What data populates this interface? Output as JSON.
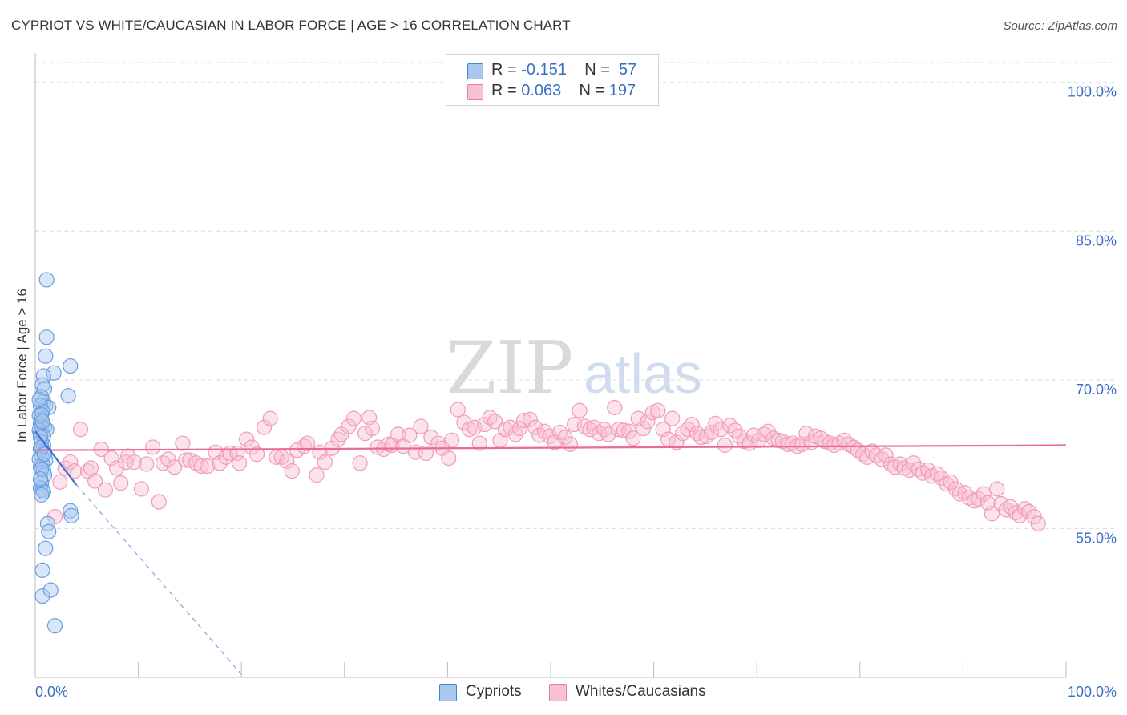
{
  "title": "CYPRIOT VS WHITE/CAUCASIAN IN LABOR FORCE | AGE > 16 CORRELATION CHART",
  "source": "Source: ZipAtlas.com",
  "watermark": {
    "zip": "ZIP",
    "atlas": "atlas"
  },
  "legend": {
    "r_label": "R =",
    "n_label": "N =",
    "rows": [
      {
        "r": "-0.151",
        "n": "57",
        "color": "#a8c8f0",
        "border": "#4a80d0"
      },
      {
        "r": "0.063",
        "n": "197",
        "color": "#f8c0d4",
        "border": "#e87aa0"
      }
    ]
  },
  "bottom_legend": [
    {
      "label": "Cypriots",
      "color": "#a8c8f0",
      "border": "#4a80d0"
    },
    {
      "label": "Whites/Caucasians",
      "color": "#f8c0d4",
      "border": "#e87aa0"
    }
  ],
  "chart_data": {
    "type": "scatter",
    "title": "CYPRIOT VS WHITE/CAUCASIAN IN LABOR FORCE | AGE > 16 CORRELATION CHART",
    "xlabel": "",
    "ylabel": "In Labor Force | Age > 16",
    "xlim": [
      0,
      100
    ],
    "ylim": [
      40,
      102
    ],
    "x_tick_labels": [
      "0.0%",
      "100.0%"
    ],
    "y_ticks": [
      55,
      70,
      85,
      100
    ],
    "y_tick_labels": [
      "55.0%",
      "70.0%",
      "85.0%",
      "100.0%"
    ],
    "grid": "horizontal dashed",
    "legend_placement": "top-center",
    "series": [
      {
        "name": "Cypriots",
        "color": "#6a9ee0",
        "trend": {
          "x": [
            0,
            4.0
          ],
          "y": [
            64.8,
            59.4
          ],
          "dashed_to": [
            20,
            40.3
          ]
        },
        "points": [
          [
            1.1,
            80.1
          ],
          [
            1.1,
            74.3
          ],
          [
            1.0,
            72.4
          ],
          [
            3.4,
            71.4
          ],
          [
            1.8,
            70.7
          ],
          [
            0.8,
            70.4
          ],
          [
            0.7,
            69.5
          ],
          [
            0.9,
            69.1
          ],
          [
            3.2,
            68.4
          ],
          [
            0.6,
            68.3
          ],
          [
            0.8,
            67.8
          ],
          [
            1.0,
            67.4
          ],
          [
            1.3,
            67.2
          ],
          [
            0.5,
            67.4
          ],
          [
            0.7,
            66.8
          ],
          [
            0.4,
            66.4
          ],
          [
            0.6,
            66.0
          ],
          [
            0.5,
            65.6
          ],
          [
            0.6,
            65.3
          ],
          [
            0.9,
            65.2
          ],
          [
            1.1,
            65.0
          ],
          [
            0.4,
            64.9
          ],
          [
            0.5,
            64.6
          ],
          [
            0.8,
            64.3
          ],
          [
            0.6,
            63.7
          ],
          [
            0.8,
            63.4
          ],
          [
            0.5,
            63.0
          ],
          [
            0.9,
            62.7
          ],
          [
            0.6,
            62.3
          ],
          [
            1.0,
            61.9
          ],
          [
            0.7,
            61.5
          ],
          [
            0.5,
            61.2
          ],
          [
            0.8,
            60.9
          ],
          [
            0.9,
            60.4
          ],
          [
            0.6,
            59.6
          ],
          [
            0.5,
            59.1
          ],
          [
            0.7,
            58.9
          ],
          [
            0.8,
            58.7
          ],
          [
            0.6,
            58.4
          ],
          [
            3.4,
            56.8
          ],
          [
            3.5,
            56.3
          ],
          [
            1.2,
            55.5
          ],
          [
            1.3,
            54.7
          ],
          [
            1.0,
            53.0
          ],
          [
            0.7,
            50.8
          ],
          [
            0.7,
            48.2
          ],
          [
            1.5,
            48.8
          ],
          [
            1.9,
            45.2
          ],
          [
            0.4,
            68.0
          ],
          [
            0.6,
            66.5
          ],
          [
            0.7,
            65.8
          ],
          [
            0.5,
            64.2
          ],
          [
            0.6,
            63.2
          ],
          [
            0.4,
            62.0
          ],
          [
            0.6,
            61.0
          ],
          [
            0.5,
            60.0
          ],
          [
            0.9,
            62.5
          ]
        ]
      },
      {
        "name": "Whites/Caucasians",
        "color": "#f19abb",
        "trend": {
          "x": [
            0,
            100
          ],
          "y": [
            62.9,
            63.4
          ]
        },
        "points": [
          [
            1.9,
            56.2
          ],
          [
            2.4,
            59.7
          ],
          [
            2.9,
            61.1
          ],
          [
            3.4,
            61.7
          ],
          [
            3.8,
            60.8
          ],
          [
            4.4,
            65.0
          ],
          [
            5.1,
            60.8
          ],
          [
            5.4,
            61.1
          ],
          [
            5.8,
            59.8
          ],
          [
            6.4,
            63.0
          ],
          [
            6.8,
            58.9
          ],
          [
            7.4,
            62.1
          ],
          [
            7.9,
            61.1
          ],
          [
            8.3,
            59.6
          ],
          [
            8.8,
            61.7
          ],
          [
            9.0,
            62.3
          ],
          [
            9.6,
            61.7
          ],
          [
            10.3,
            59.0
          ],
          [
            10.8,
            61.5
          ],
          [
            11.4,
            63.2
          ],
          [
            12.0,
            57.7
          ],
          [
            12.4,
            61.6
          ],
          [
            12.9,
            62.0
          ],
          [
            13.5,
            61.2
          ],
          [
            14.3,
            63.6
          ],
          [
            14.6,
            61.9
          ],
          [
            15.0,
            61.9
          ],
          [
            15.6,
            61.6
          ],
          [
            16.1,
            61.3
          ],
          [
            16.7,
            61.3
          ],
          [
            17.5,
            62.7
          ],
          [
            17.9,
            61.6
          ],
          [
            18.5,
            62.2
          ],
          [
            18.9,
            62.6
          ],
          [
            19.6,
            62.6
          ],
          [
            19.8,
            61.6
          ],
          [
            20.5,
            64.0
          ],
          [
            21.0,
            63.2
          ],
          [
            21.5,
            62.5
          ],
          [
            22.2,
            65.2
          ],
          [
            22.8,
            66.1
          ],
          [
            23.4,
            62.2
          ],
          [
            23.9,
            62.2
          ],
          [
            24.4,
            61.8
          ],
          [
            24.9,
            60.8
          ],
          [
            25.4,
            62.9
          ],
          [
            26.1,
            63.3
          ],
          [
            26.4,
            63.6
          ],
          [
            27.3,
            60.4
          ],
          [
            27.6,
            62.7
          ],
          [
            28.1,
            61.7
          ],
          [
            28.8,
            63.1
          ],
          [
            29.4,
            64.0
          ],
          [
            29.7,
            64.5
          ],
          [
            30.4,
            65.3
          ],
          [
            30.9,
            66.1
          ],
          [
            31.5,
            61.6
          ],
          [
            32.0,
            64.6
          ],
          [
            32.4,
            66.2
          ],
          [
            32.7,
            65.1
          ],
          [
            33.2,
            63.2
          ],
          [
            33.8,
            63.0
          ],
          [
            34.3,
            63.5
          ],
          [
            34.6,
            63.4
          ],
          [
            35.2,
            64.5
          ],
          [
            35.7,
            63.3
          ],
          [
            36.3,
            64.4
          ],
          [
            36.9,
            62.7
          ],
          [
            37.4,
            65.3
          ],
          [
            37.9,
            62.6
          ],
          [
            38.4,
            64.2
          ],
          [
            39.1,
            63.6
          ],
          [
            39.5,
            63.1
          ],
          [
            40.1,
            62.1
          ],
          [
            40.4,
            63.9
          ],
          [
            41.0,
            67.0
          ],
          [
            41.6,
            65.7
          ],
          [
            42.1,
            65.0
          ],
          [
            42.6,
            65.2
          ],
          [
            43.1,
            63.6
          ],
          [
            43.6,
            65.5
          ],
          [
            44.1,
            66.2
          ],
          [
            44.6,
            65.8
          ],
          [
            45.1,
            63.9
          ],
          [
            45.6,
            65.0
          ],
          [
            46.1,
            65.2
          ],
          [
            46.6,
            64.5
          ],
          [
            47.0,
            65.1
          ],
          [
            47.4,
            65.9
          ],
          [
            48.0,
            66.0
          ],
          [
            48.5,
            65.2
          ],
          [
            48.9,
            64.4
          ],
          [
            49.4,
            64.8
          ],
          [
            49.9,
            64.3
          ],
          [
            50.4,
            63.7
          ],
          [
            50.9,
            64.7
          ],
          [
            51.4,
            64.2
          ],
          [
            51.9,
            63.5
          ],
          [
            52.3,
            65.5
          ],
          [
            52.8,
            66.9
          ],
          [
            53.3,
            65.3
          ],
          [
            53.8,
            65.0
          ],
          [
            54.2,
            65.2
          ],
          [
            54.7,
            64.6
          ],
          [
            55.2,
            65.0
          ],
          [
            55.6,
            64.5
          ],
          [
            56.2,
            67.2
          ],
          [
            56.6,
            65.0
          ],
          [
            57.1,
            64.9
          ],
          [
            57.6,
            64.8
          ],
          [
            58.0,
            64.1
          ],
          [
            58.5,
            66.1
          ],
          [
            59.0,
            65.1
          ],
          [
            59.4,
            65.8
          ],
          [
            59.9,
            66.7
          ],
          [
            60.4,
            66.9
          ],
          [
            60.9,
            65.0
          ],
          [
            61.4,
            64.0
          ],
          [
            61.8,
            66.1
          ],
          [
            62.2,
            63.7
          ],
          [
            62.8,
            64.6
          ],
          [
            63.3,
            65.0
          ],
          [
            63.7,
            65.5
          ],
          [
            64.2,
            64.6
          ],
          [
            64.6,
            64.2
          ],
          [
            65.1,
            64.3
          ],
          [
            65.6,
            64.7
          ],
          [
            66.0,
            65.6
          ],
          [
            66.5,
            65.0
          ],
          [
            66.9,
            63.4
          ],
          [
            67.4,
            65.4
          ],
          [
            67.9,
            64.9
          ],
          [
            68.3,
            64.3
          ],
          [
            68.8,
            63.8
          ],
          [
            69.3,
            63.6
          ],
          [
            69.7,
            64.4
          ],
          [
            70.2,
            63.9
          ],
          [
            70.7,
            64.5
          ],
          [
            71.1,
            64.8
          ],
          [
            71.6,
            64.1
          ],
          [
            72.1,
            63.9
          ],
          [
            72.5,
            63.8
          ],
          [
            73.0,
            63.5
          ],
          [
            73.5,
            63.6
          ],
          [
            73.9,
            63.3
          ],
          [
            74.4,
            63.5
          ],
          [
            74.8,
            64.6
          ],
          [
            75.3,
            63.7
          ],
          [
            75.7,
            64.3
          ],
          [
            76.2,
            64.1
          ],
          [
            76.6,
            63.8
          ],
          [
            77.1,
            63.6
          ],
          [
            77.5,
            63.4
          ],
          [
            78.0,
            63.6
          ],
          [
            78.5,
            63.9
          ],
          [
            78.9,
            63.5
          ],
          [
            79.4,
            63.2
          ],
          [
            79.8,
            62.9
          ],
          [
            80.3,
            62.5
          ],
          [
            80.7,
            62.2
          ],
          [
            81.2,
            62.8
          ],
          [
            81.6,
            62.4
          ],
          [
            82.1,
            62.0
          ],
          [
            82.5,
            62.4
          ],
          [
            83.0,
            61.5
          ],
          [
            83.4,
            61.2
          ],
          [
            83.9,
            61.5
          ],
          [
            84.3,
            61.1
          ],
          [
            84.8,
            60.9
          ],
          [
            85.2,
            61.6
          ],
          [
            85.7,
            61.0
          ],
          [
            86.1,
            60.6
          ],
          [
            86.6,
            60.9
          ],
          [
            87.0,
            60.3
          ],
          [
            87.5,
            60.5
          ],
          [
            87.9,
            60.1
          ],
          [
            88.4,
            59.5
          ],
          [
            88.8,
            59.7
          ],
          [
            89.3,
            59.0
          ],
          [
            89.7,
            58.5
          ],
          [
            90.2,
            58.6
          ],
          [
            90.6,
            58.1
          ],
          [
            91.1,
            57.8
          ],
          [
            91.5,
            58.0
          ],
          [
            92.0,
            58.5
          ],
          [
            92.4,
            57.6
          ],
          [
            92.8,
            56.5
          ],
          [
            93.3,
            59.0
          ],
          [
            93.7,
            57.5
          ],
          [
            94.2,
            56.9
          ],
          [
            94.6,
            57.2
          ],
          [
            95.1,
            56.6
          ],
          [
            95.5,
            56.3
          ],
          [
            96.0,
            57.0
          ],
          [
            96.4,
            56.7
          ],
          [
            96.9,
            56.2
          ],
          [
            97.3,
            55.5
          ]
        ]
      }
    ]
  }
}
